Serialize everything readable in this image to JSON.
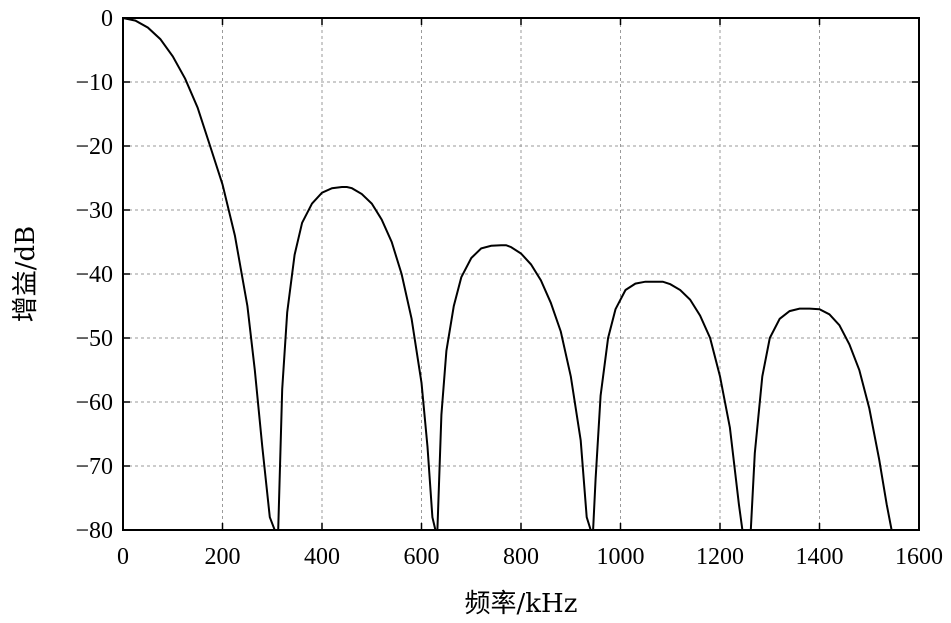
{
  "chart_data": {
    "type": "line",
    "title": "",
    "xlabel": "频率/kHz",
    "ylabel": "增益/dB",
    "xlim": [
      0,
      1600
    ],
    "ylim": [
      -80,
      0
    ],
    "xticks": [
      0,
      200,
      400,
      600,
      800,
      1000,
      1200,
      1400,
      1600
    ],
    "yticks": [
      0,
      -10,
      -20,
      -30,
      -40,
      -50,
      -60,
      -70,
      -80
    ],
    "xtick_labels": [
      "0",
      "200",
      "400",
      "600",
      "800",
      "1000",
      "1200",
      "1400",
      "1600"
    ],
    "ytick_labels": [
      "0",
      "−10",
      "−20",
      "−30",
      "−40",
      "−50",
      "−60",
      "−70",
      "−80"
    ],
    "grid": true,
    "legend": "none",
    "line_color": "#000000",
    "series": [
      {
        "x": [
          0,
          25,
          50,
          75,
          100,
          125,
          150,
          175,
          200,
          225,
          250,
          265,
          280,
          295,
          305,
          310,
          312,
          320,
          330,
          345,
          360,
          380,
          400,
          420,
          440,
          450,
          460,
          480,
          500,
          520,
          540,
          560,
          580,
          600,
          612,
          622,
          628,
          632,
          640,
          650,
          665,
          680,
          700,
          720,
          740,
          760,
          770,
          780,
          800,
          820,
          840,
          860,
          880,
          900,
          920,
          932,
          940,
          945,
          950,
          960,
          975,
          990,
          1010,
          1030,
          1050,
          1070,
          1085,
          1100,
          1120,
          1140,
          1160,
          1180,
          1200,
          1220,
          1238,
          1245,
          1250,
          1258,
          1262,
          1270,
          1285,
          1300,
          1320,
          1340,
          1360,
          1380,
          1400,
          1420,
          1440,
          1460,
          1480,
          1500,
          1520,
          1535,
          1545,
          1552
        ],
        "y": [
          0,
          -0.4,
          -1.5,
          -3.3,
          -6,
          -9.5,
          -14,
          -20,
          -26,
          -34,
          -45,
          -55,
          -67,
          -78,
          -80,
          -80,
          -80,
          -58,
          -46,
          -37,
          -32,
          -29,
          -27.3,
          -26.6,
          -26.4,
          -26.4,
          -26.6,
          -27.5,
          -29,
          -31.5,
          -35,
          -40,
          -47,
          -57,
          -67,
          -78,
          -80,
          -80,
          -62,
          -52,
          -45,
          -40.5,
          -37.5,
          -36,
          -35.6,
          -35.5,
          -35.5,
          -35.8,
          -36.8,
          -38.5,
          -41,
          -44.5,
          -49,
          -56,
          -66,
          -78,
          -80,
          -80,
          -72,
          -59,
          -50,
          -45.5,
          -42.5,
          -41.5,
          -41.2,
          -41.2,
          -41.2,
          -41.6,
          -42.5,
          -44,
          -46.5,
          -50,
          -56,
          -64,
          -76,
          -80,
          -80,
          -80,
          -80,
          -68,
          -56,
          -50,
          -47,
          -45.8,
          -45.4,
          -45.4,
          -45.5,
          -46.3,
          -48,
          -51,
          -55,
          -61,
          -69,
          -76,
          -80,
          -80
        ]
      }
    ]
  }
}
